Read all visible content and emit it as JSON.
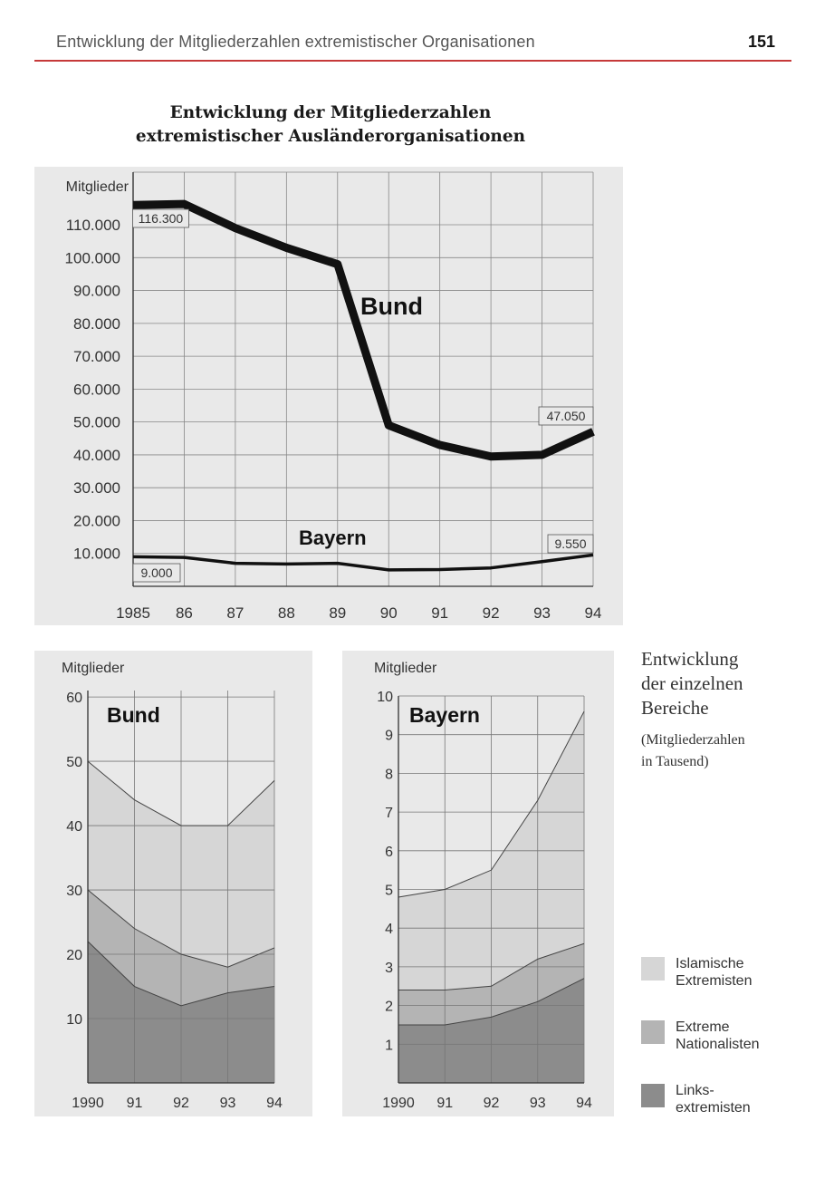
{
  "page": {
    "header_title": "Entwicklung der Mitgliederzahlen extremistischer Organisationen",
    "page_number": "151"
  },
  "main_title_line1": "Entwicklung der Mitgliederzahlen",
  "main_title_line2": "extremistischer Ausländerorganisationen",
  "side_note": {
    "heading": [
      "Entwicklung",
      "der einzelnen",
      "Bereiche"
    ],
    "sub": [
      "(Mitgliederzahlen",
      "in Tausend)"
    ]
  },
  "legend": [
    {
      "label": [
        "Islamische",
        "Extremisten"
      ],
      "color": "#d6d6d6"
    },
    {
      "label": [
        "Extreme",
        "Nationalisten"
      ],
      "color": "#b4b4b4"
    },
    {
      "label": [
        "Links-",
        "extremisten"
      ],
      "color": "#8c8c8c"
    }
  ],
  "colors": {
    "panel_bg": "#e9e9e9",
    "grid": "#888888",
    "bund_line": "#111111",
    "islamic": "#d6d6d6",
    "nationalist": "#b4b4b4",
    "left": "#8c8c8c"
  },
  "chart_data": [
    {
      "type": "line",
      "ylabel": "Mitglieder",
      "categories": [
        "1985",
        "86",
        "87",
        "88",
        "89",
        "90",
        "91",
        "92",
        "93",
        "94"
      ],
      "yticks": [
        {
          "value": 10000,
          "label": "10.000"
        },
        {
          "value": 20000,
          "label": "20.000"
        },
        {
          "value": 30000,
          "label": "30.000"
        },
        {
          "value": 40000,
          "label": "40.000"
        },
        {
          "value": 50000,
          "label": "50.000"
        },
        {
          "value": 60000,
          "label": "60.000"
        },
        {
          "value": 70000,
          "label": "70.000"
        },
        {
          "value": 80000,
          "label": "80.000"
        },
        {
          "value": 90000,
          "label": "90.000"
        },
        {
          "value": 100000,
          "label": "100.000"
        },
        {
          "value": 110000,
          "label": "110.000"
        }
      ],
      "ylim": [
        0,
        126000
      ],
      "grid": true,
      "series": [
        {
          "name": "Bund",
          "values": [
            116000,
            116300,
            109000,
            103000,
            98000,
            49000,
            43000,
            39500,
            40000,
            47050
          ],
          "annotations": [
            {
              "index": 1,
              "label": "116.300"
            },
            {
              "index": 9,
              "label": "47.050"
            }
          ]
        },
        {
          "name": "Bayern",
          "values": [
            9000,
            8800,
            7000,
            6800,
            7000,
            5000,
            5100,
            5600,
            7500,
            9550
          ],
          "annotations": [
            {
              "index": 0,
              "label": "9.000"
            },
            {
              "index": 9,
              "label": "9.550"
            }
          ]
        }
      ]
    },
    {
      "type": "area",
      "title": "Bund",
      "ylabel": "Mitglieder",
      "categories": [
        "1990",
        "91",
        "92",
        "93",
        "94"
      ],
      "yticks": [
        10,
        20,
        30,
        40,
        50,
        60
      ],
      "ylim": [
        0,
        61
      ],
      "stacked": true,
      "series": [
        {
          "name": "Linksextremisten",
          "values": [
            22,
            15,
            12,
            14,
            15
          ]
        },
        {
          "name": "Extreme Nationalisten",
          "values": [
            8,
            9,
            8,
            4,
            6
          ]
        },
        {
          "name": "Islamische Extremisten",
          "values": [
            20,
            20,
            20,
            22,
            26
          ]
        }
      ]
    },
    {
      "type": "area",
      "title": "Bayern",
      "ylabel": "Mitglieder",
      "categories": [
        "1990",
        "91",
        "92",
        "93",
        "94"
      ],
      "yticks": [
        1,
        2,
        3,
        4,
        5,
        6,
        7,
        8,
        9,
        10
      ],
      "ylim": [
        0,
        10
      ],
      "stacked": true,
      "series": [
        {
          "name": "Linksextremisten",
          "values": [
            1.5,
            1.5,
            1.7,
            2.1,
            2.7
          ]
        },
        {
          "name": "Extreme Nationalisten",
          "values": [
            0.9,
            0.9,
            0.8,
            1.1,
            0.9
          ]
        },
        {
          "name": "Islamische Extremisten",
          "values": [
            2.4,
            2.6,
            3.0,
            4.1,
            6.0
          ]
        }
      ]
    }
  ]
}
